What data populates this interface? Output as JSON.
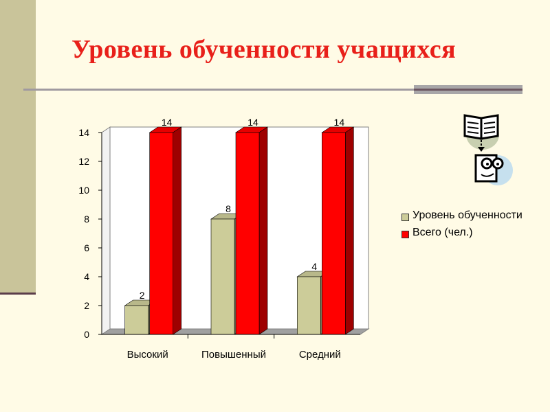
{
  "slide": {
    "title": "Уровень обученности учащихся",
    "colors": {
      "title": "#e8201a",
      "background": "#fffbe6",
      "band": "#c9c49a"
    },
    "icons": [
      "open-book-icon",
      "face-with-glasses-icon"
    ]
  },
  "chart_data": {
    "type": "bar",
    "title": "",
    "xlabel": "",
    "ylabel": "",
    "categories": [
      "Высокий",
      "Повышенный",
      "Средний"
    ],
    "series": [
      {
        "name": "Уровень обученности",
        "values": [
          2,
          8,
          4
        ],
        "color": "#cccc99",
        "data_labels": [
          "2",
          "8",
          "4"
        ]
      },
      {
        "name": "Всего (чел.)",
        "values": [
          14,
          14,
          14
        ],
        "color": "#ff0000",
        "data_labels": [
          "14",
          "14",
          "14"
        ]
      }
    ],
    "ylim": [
      0,
      14
    ],
    "yticks": [
      0,
      2,
      4,
      6,
      8,
      10,
      12,
      14
    ],
    "grid": false,
    "three_d": true,
    "legend_position": "right"
  }
}
